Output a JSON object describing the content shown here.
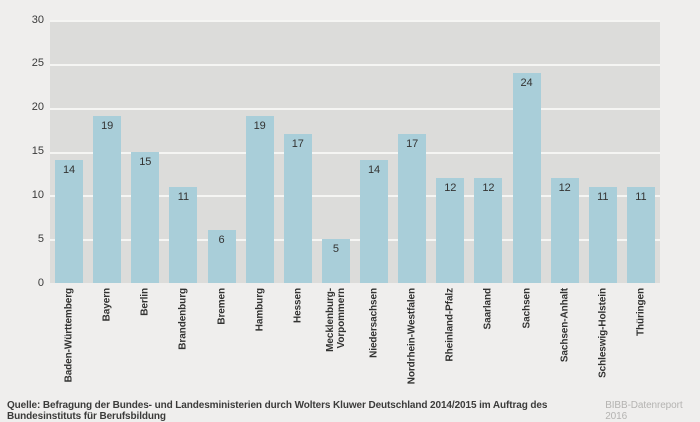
{
  "chart_data": {
    "type": "bar",
    "title": "",
    "xlabel": "",
    "ylabel": "",
    "categories": [
      "Baden-Württemberg",
      "Bayern",
      "Berlin",
      "Brandenburg",
      "Bremen",
      "Hamburg",
      "Hessen",
      "Mecklenburg-\nVorpommern",
      "Niedersachsen",
      "Nordrhein-Westfalen",
      "Rheinland-Pfalz",
      "Saarland",
      "Sachsen",
      "Sachsen-Anhalt",
      "Schleswig-Holstein",
      "Thüringen"
    ],
    "values": [
      14,
      19,
      15,
      11,
      6,
      19,
      17,
      5,
      14,
      17,
      12,
      12,
      24,
      12,
      11,
      11
    ],
    "ylim": [
      0,
      30
    ],
    "yticks": [
      0,
      5,
      10,
      15,
      20,
      25,
      30
    ],
    "grid": "horizontal",
    "legend": "none",
    "bar_color": "#a9ced9",
    "plot_background": "#dcdcda",
    "page_background": "#efeeed",
    "gridline_color": "#f5f5f3"
  },
  "footer": {
    "source": "Quelle: Befragung der Bundes- und Landesministerien durch Wolters Kluwer Deutschland 2014/2015 im Auftrag des Bundesinstituts für Berufsbildung",
    "attribution": "BIBB-Datenreport 2016"
  }
}
